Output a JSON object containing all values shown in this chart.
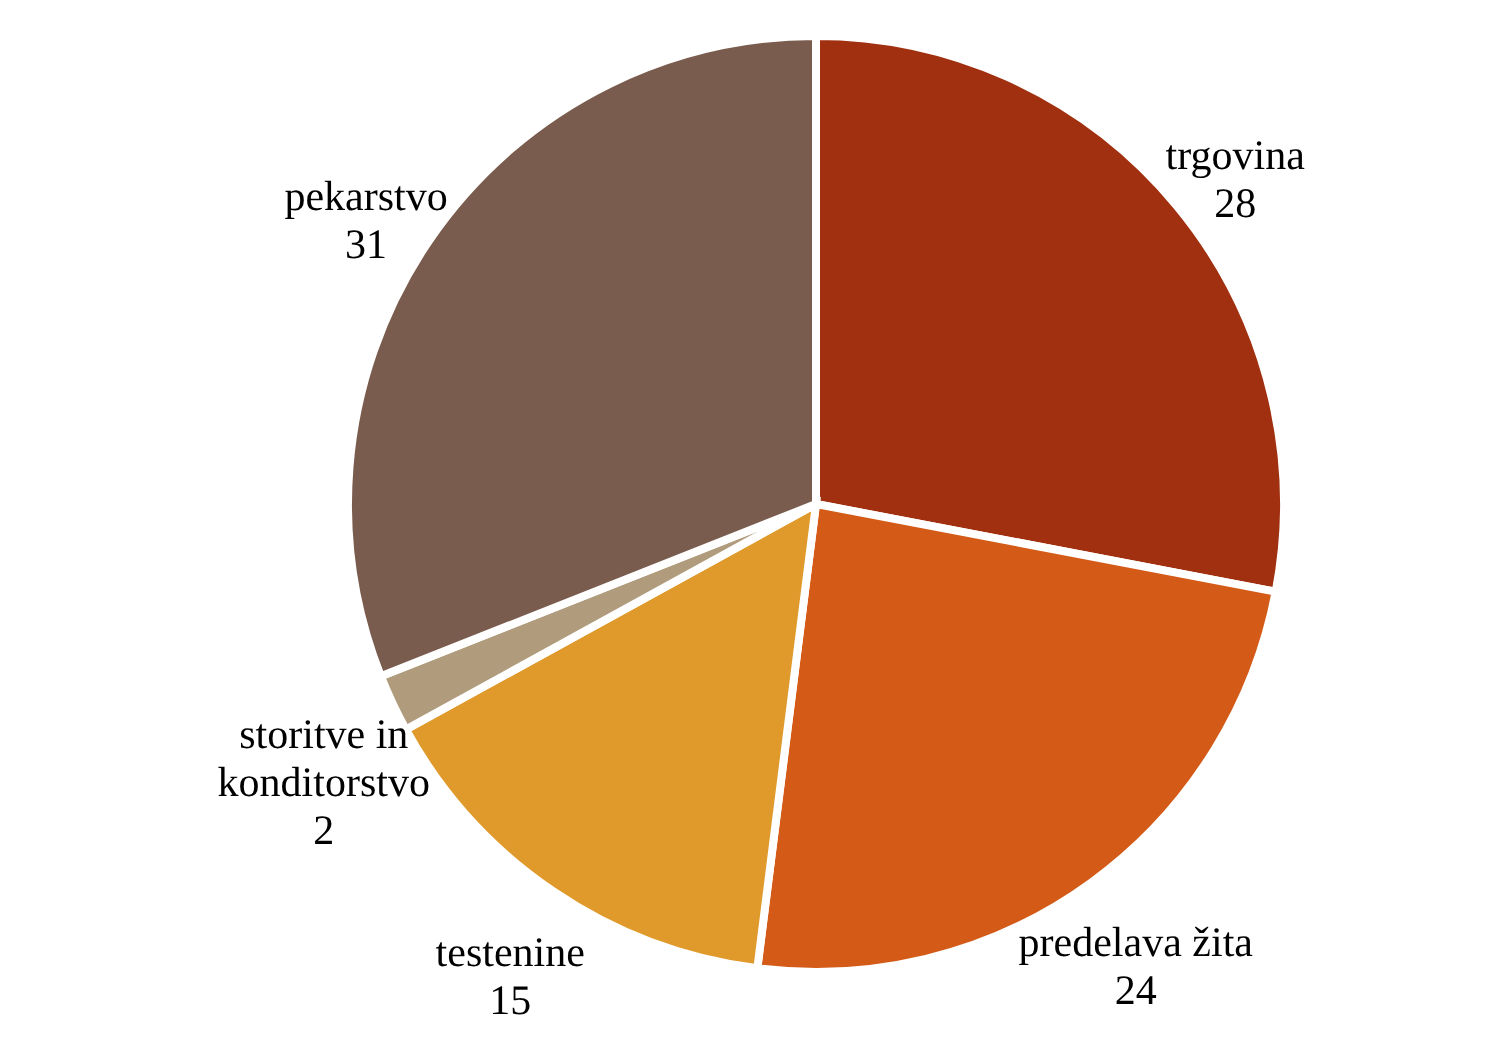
{
  "chart_data": {
    "type": "pie",
    "categories": [
      "trgovina",
      "predelava žita",
      "testenine",
      "storitve in konditorstvo",
      "pekarstvo"
    ],
    "values": [
      28,
      24,
      15,
      2,
      31
    ],
    "colors": [
      "#a0300f",
      "#d45a17",
      "#e09a2b",
      "#b09c7c",
      "#7a5c4e"
    ],
    "data_labels": true
  }
}
